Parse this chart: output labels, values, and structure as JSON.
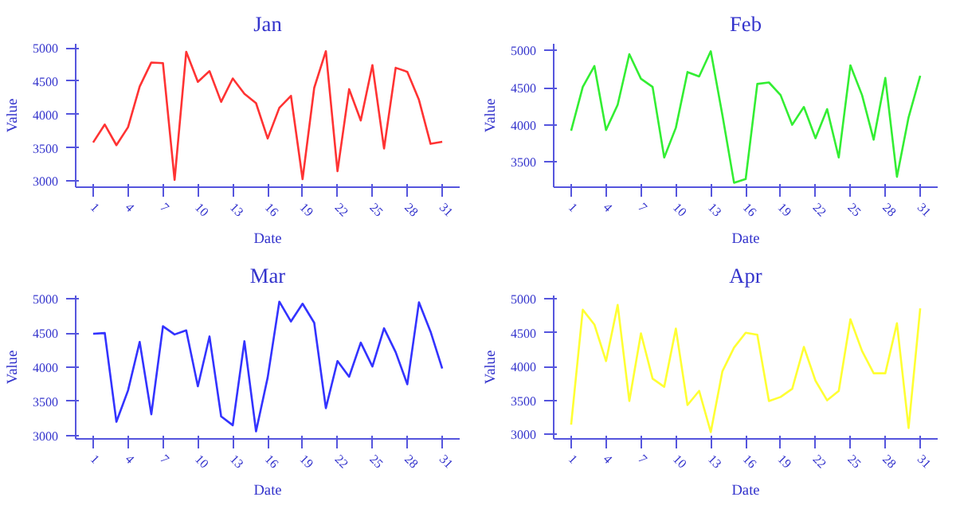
{
  "chart_data": [
    {
      "type": "line",
      "title": "Jan",
      "xlabel": "Date",
      "ylabel": "Value",
      "x": [
        1,
        2,
        3,
        4,
        5,
        6,
        7,
        8,
        9,
        10,
        11,
        12,
        13,
        14,
        15,
        16,
        17,
        18,
        19,
        20,
        21,
        22,
        23,
        24,
        25,
        26,
        27,
        28,
        29,
        30,
        31
      ],
      "color": "#ff3333",
      "values": [
        3580,
        3850,
        3540,
        3810,
        4420,
        4780,
        4770,
        3020,
        4940,
        4490,
        4650,
        4190,
        4540,
        4310,
        4170,
        3640,
        4100,
        4280,
        3030,
        4400,
        4950,
        3150,
        4380,
        3910,
        4740,
        3490,
        4700,
        4640,
        4220,
        3560,
        3590
      ],
      "xlim": [
        -0.5,
        32.5
      ],
      "ylim": [
        2910,
        5060
      ],
      "xticks": [
        1,
        4,
        7,
        10,
        13,
        16,
        19,
        22,
        25,
        28,
        31
      ],
      "yticks": [
        3000,
        3500,
        4000,
        4500,
        5000
      ],
      "grid": false
    },
    {
      "type": "line",
      "title": "Feb",
      "xlabel": "Date",
      "ylabel": "Value",
      "x": [
        1,
        2,
        3,
        4,
        5,
        6,
        7,
        8,
        9,
        10,
        11,
        12,
        13,
        14,
        15,
        16,
        17,
        18,
        19,
        20,
        21,
        22,
        23,
        24,
        25,
        26,
        27,
        28,
        29,
        30,
        31
      ],
      "color": "#33ee33",
      "values": [
        3920,
        4510,
        4790,
        3930,
        4270,
        4950,
        4620,
        4510,
        3560,
        3960,
        4710,
        4650,
        4990,
        4130,
        3220,
        3270,
        4550,
        4570,
        4400,
        4000,
        4240,
        3820,
        4210,
        3560,
        4800,
        4400,
        3800,
        4630,
        3300,
        4100,
        4660
      ],
      "xlim": [
        -0.5,
        32.5
      ],
      "ylim": [
        3160,
        5090
      ],
      "xticks": [
        1,
        4,
        7,
        10,
        13,
        16,
        19,
        22,
        25,
        28,
        31
      ],
      "yticks": [
        3500,
        4000,
        4500,
        5000
      ],
      "grid": false
    },
    {
      "type": "line",
      "title": "Mar",
      "xlabel": "Date",
      "ylabel": "Value",
      "x": [
        1,
        2,
        3,
        4,
        5,
        6,
        7,
        8,
        9,
        10,
        11,
        12,
        13,
        14,
        15,
        16,
        17,
        18,
        19,
        20,
        21,
        22,
        23,
        24,
        25,
        26,
        27,
        28,
        29,
        30,
        31
      ],
      "color": "#3333ff",
      "values": [
        4490,
        4500,
        3200,
        3660,
        4370,
        3310,
        4600,
        4480,
        4540,
        3720,
        4450,
        3280,
        3150,
        4380,
        3060,
        3850,
        4960,
        4670,
        4930,
        4650,
        3400,
        4090,
        3860,
        4360,
        4010,
        4570,
        4220,
        3750,
        4950,
        4520,
        3980
      ],
      "xlim": [
        -0.5,
        32.5
      ],
      "ylim": [
        2950,
        5050
      ],
      "xticks": [
        1,
        4,
        7,
        10,
        13,
        16,
        19,
        22,
        25,
        28,
        31
      ],
      "yticks": [
        3000,
        3500,
        4000,
        4500,
        5000
      ],
      "grid": false
    },
    {
      "type": "line",
      "title": "Apr",
      "xlabel": "Date",
      "ylabel": "Value",
      "x": [
        1,
        2,
        3,
        4,
        5,
        6,
        7,
        8,
        9,
        10,
        11,
        12,
        13,
        14,
        15,
        16,
        17,
        18,
        19,
        20,
        21,
        22,
        23,
        24,
        25,
        26,
        27,
        28,
        29,
        30,
        31
      ],
      "color": "#ffff33",
      "values": [
        3140,
        4840,
        4620,
        4080,
        4910,
        3490,
        4490,
        3820,
        3700,
        4560,
        3430,
        3640,
        3030,
        3930,
        4280,
        4500,
        4470,
        3490,
        3550,
        3670,
        4290,
        3790,
        3500,
        3640,
        4700,
        4230,
        3900,
        3900,
        4640,
        3090,
        4860
      ],
      "xlim": [
        -0.5,
        32.5
      ],
      "ylim": [
        2930,
        5050
      ],
      "xticks": [
        1,
        4,
        7,
        10,
        13,
        16,
        19,
        22,
        25,
        28,
        31
      ],
      "yticks": [
        3000,
        3500,
        4000,
        4500,
        5000
      ],
      "grid": false
    }
  ]
}
